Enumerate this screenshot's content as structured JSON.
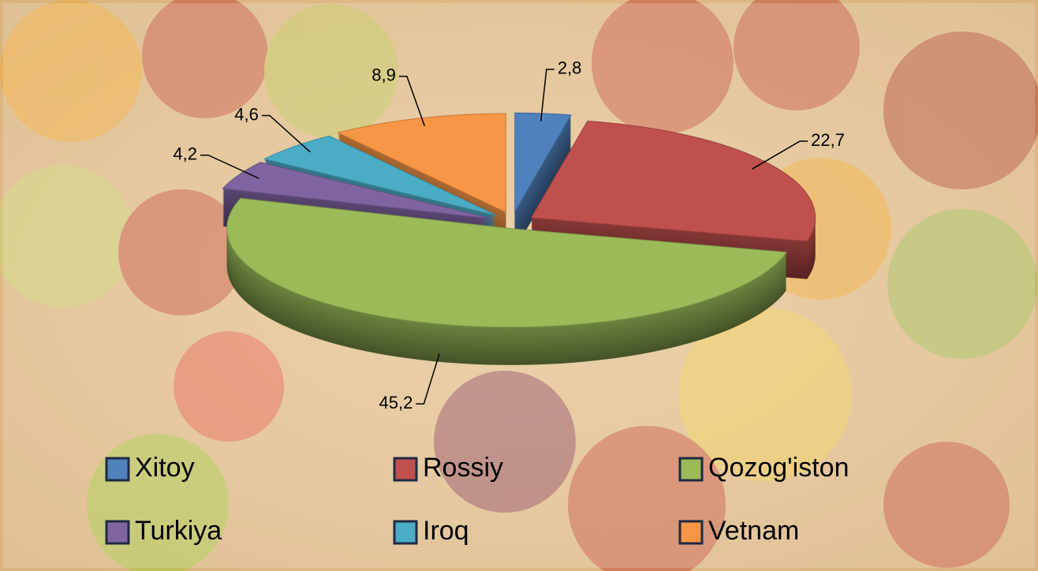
{
  "chart_data": {
    "type": "pie",
    "categories": [
      "Xitoy",
      "Rossiy",
      "Qozog'iston",
      "Turkiya",
      "Iroq",
      "Vetnam"
    ],
    "values": [
      2.8,
      22.7,
      45.2,
      4.2,
      4.6,
      8.9
    ],
    "value_labels": [
      "2,8",
      "22,7",
      "45,2",
      "4,2",
      "4,6",
      "8,9"
    ],
    "colors": [
      "#4f81bd",
      "#c0504d",
      "#9bbb59",
      "#8064a2",
      "#4bacc6",
      "#f79646"
    ],
    "legend": "bottom"
  }
}
